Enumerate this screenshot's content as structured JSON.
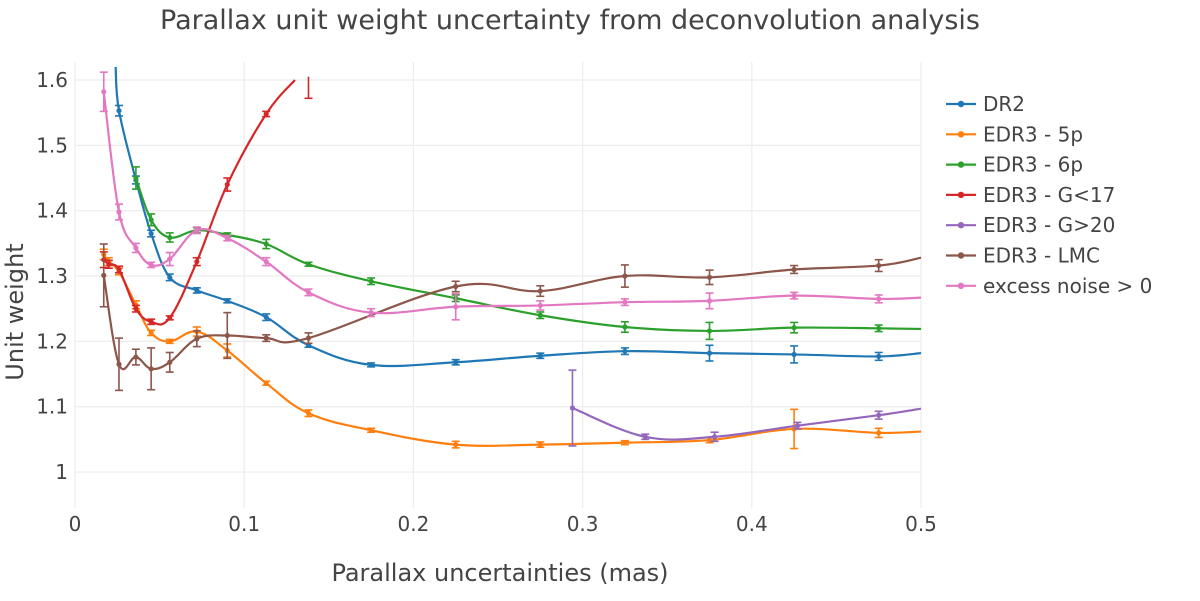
{
  "chart_data": {
    "type": "line",
    "title": "Parallax unit weight uncertainty from deconvolution analysis",
    "xlabel": "Parallax uncertainties (mas)",
    "ylabel": "Unit weight",
    "xlim": [
      0,
      0.5
    ],
    "ylim": [
      0.945,
      1.6
    ],
    "xticks": [
      0,
      0.1,
      0.2,
      0.3,
      0.4,
      0.5
    ],
    "xtick_labels": [
      "0",
      "0.1",
      "0.2",
      "0.3",
      "0.4",
      "0.5"
    ],
    "yticks": [
      1.0,
      1.1,
      1.2,
      1.3,
      1.4,
      1.5,
      1.6
    ],
    "ytick_labels": [
      "1",
      "1.1",
      "1.2",
      "1.3",
      "1.4",
      "1.5",
      "1.6"
    ],
    "grid": true,
    "legend_position": "right",
    "series": [
      {
        "name": "DR2",
        "color": "#1f77b4",
        "x": [
          0.026,
          0.036,
          0.045,
          0.056,
          0.072,
          0.09,
          0.113,
          0.138,
          0.175,
          0.225,
          0.275,
          0.325,
          0.375,
          0.425,
          0.475,
          0.5
        ],
        "y": [
          1.553,
          1.447,
          1.365,
          1.298,
          1.278,
          1.262,
          1.237,
          1.194,
          1.164,
          1.168,
          1.178,
          1.185,
          1.182,
          1.18,
          1.177,
          1.182
        ],
        "err": [
          0.008,
          0.006,
          0.005,
          0.005,
          0.004,
          0.003,
          0.005,
          0.003,
          0.003,
          0.004,
          0.004,
          0.005,
          0.012,
          0.013,
          0.006,
          null
        ],
        "lead_in": [
          [
            0.024,
            1.62
          ]
        ]
      },
      {
        "name": "EDR3 - 5p",
        "color": "#ff7f0e",
        "x": [
          0.017,
          0.02,
          0.026,
          0.036,
          0.045,
          0.056,
          0.072,
          0.09,
          0.113,
          0.138,
          0.175,
          0.225,
          0.275,
          0.325,
          0.375,
          0.425,
          0.475,
          0.5
        ],
        "y": [
          1.333,
          1.322,
          1.307,
          1.256,
          1.213,
          1.2,
          1.215,
          1.186,
          1.136,
          1.09,
          1.064,
          1.042,
          1.042,
          1.045,
          1.049,
          1.066,
          1.06,
          1.062
        ],
        "err": [
          0.008,
          0.006,
          0.005,
          0.006,
          0.004,
          0.003,
          0.007,
          0.01,
          0.003,
          0.005,
          0.003,
          0.005,
          0.004,
          0.003,
          0.004,
          0.03,
          0.007,
          null
        ]
      },
      {
        "name": "EDR3 - 6p",
        "color": "#2ca02c",
        "x": [
          0.036,
          0.045,
          0.056,
          0.072,
          0.09,
          0.113,
          0.138,
          0.175,
          0.225,
          0.275,
          0.325,
          0.375,
          0.425,
          0.475,
          0.5
        ],
        "y": [
          1.45,
          1.386,
          1.359,
          1.37,
          1.363,
          1.349,
          1.318,
          1.292,
          1.266,
          1.24,
          1.222,
          1.216,
          1.221,
          1.22,
          1.219
        ],
        "err": [
          0.017,
          0.009,
          0.007,
          0.004,
          0.003,
          0.007,
          0.003,
          0.005,
          0.005,
          0.005,
          0.008,
          0.013,
          0.008,
          0.005,
          null
        ]
      },
      {
        "name": "EDR3 - G<17",
        "color": "#d62728",
        "x": [
          0.017,
          0.02,
          0.026,
          0.036,
          0.045,
          0.056,
          0.072,
          0.09,
          0.113,
          0.13
        ],
        "y": [
          1.325,
          1.318,
          1.31,
          1.25,
          1.23,
          1.236,
          1.322,
          1.44,
          1.548,
          1.6
        ],
        "err": [
          0.012,
          0.006,
          0.005,
          0.005,
          0.004,
          0.003,
          0.006,
          0.01,
          0.004,
          null
        ],
        "extra_bar": {
          "x": 0.138,
          "y_low": 1.572,
          "y_high": 1.605
        }
      },
      {
        "name": "EDR3 - G>20",
        "color": "#9467bd",
        "x": [
          0.294,
          0.337,
          0.378,
          0.427,
          0.475,
          0.5
        ],
        "y": [
          1.098,
          1.054,
          1.054,
          1.071,
          1.087,
          1.097
        ],
        "err": [
          0.058,
          0.004,
          0.007,
          0.005,
          0.006,
          null
        ]
      },
      {
        "name": "EDR3 - LMC",
        "color": "#8c564b",
        "x": [
          0.017,
          0.026,
          0.036,
          0.045,
          0.056,
          0.072,
          0.09,
          0.113,
          0.138,
          0.225,
          0.275,
          0.325,
          0.375,
          0.425,
          0.475,
          0.5
        ],
        "y": [
          1.301,
          1.165,
          1.176,
          1.158,
          1.168,
          1.204,
          1.209,
          1.205,
          1.205,
          1.284,
          1.277,
          1.3,
          1.298,
          1.31,
          1.316,
          1.328
        ],
        "err": [
          0.048,
          0.04,
          0.012,
          0.032,
          0.015,
          0.012,
          0.035,
          0.005,
          0.008,
          0.008,
          0.008,
          0.017,
          0.011,
          0.006,
          0.009,
          null
        ]
      },
      {
        "name": "excess noise > 0",
        "color": "#e377c2",
        "x": [
          0.017,
          0.026,
          0.036,
          0.045,
          0.056,
          0.072,
          0.09,
          0.113,
          0.138,
          0.175,
          0.225,
          0.275,
          0.325,
          0.375,
          0.425,
          0.475,
          0.5
        ],
        "y": [
          1.582,
          1.398,
          1.343,
          1.317,
          1.326,
          1.37,
          1.358,
          1.322,
          1.275,
          1.244,
          1.253,
          1.255,
          1.26,
          1.262,
          1.27,
          1.265,
          1.267
        ],
        "err": [
          0.03,
          0.012,
          0.007,
          0.004,
          0.01,
          0.005,
          0.004,
          0.006,
          0.005,
          0.006,
          0.02,
          0.007,
          0.005,
          0.012,
          0.005,
          0.006,
          null
        ]
      }
    ]
  }
}
